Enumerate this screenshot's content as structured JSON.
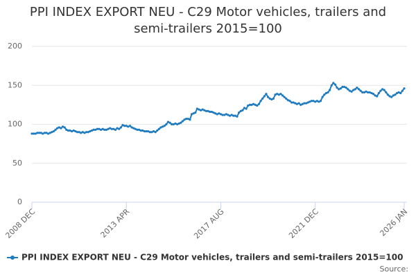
{
  "chart_data": {
    "type": "line",
    "title": "PPI INDEX EXPORT NEU - C29 Motor vehicles, trailers and semi-trailers 2015=100",
    "source": "Source:",
    "categories": [
      "2008 DEC",
      null,
      null,
      null,
      null,
      null,
      null,
      null,
      null,
      null,
      null,
      null,
      null,
      null,
      null,
      null,
      null,
      null,
      null,
      null,
      null,
      null,
      null,
      null,
      null,
      null,
      null,
      null,
      null,
      null,
      null,
      null,
      null,
      null,
      null,
      null,
      null,
      null,
      null,
      null,
      null,
      null,
      null,
      null,
      null,
      null,
      null,
      null,
      null,
      null,
      null,
      null,
      "2013 APR",
      null,
      null,
      null,
      null,
      null,
      null,
      null,
      null,
      null,
      null,
      null,
      null,
      null,
      null,
      null,
      null,
      null,
      null,
      null,
      null,
      null,
      null,
      null,
      null,
      null,
      null,
      null,
      null,
      null,
      null,
      null,
      null,
      null,
      null,
      null,
      null,
      null,
      null,
      null,
      null,
      null,
      null,
      null,
      null,
      null,
      null,
      null,
      null,
      null,
      null,
      null,
      "2017 AUG",
      null,
      null,
      null,
      null,
      null,
      null,
      null,
      null,
      null,
      null,
      null,
      null,
      null,
      null,
      null,
      null,
      null,
      null,
      null,
      null,
      null,
      null,
      null,
      null,
      null,
      null,
      null,
      null,
      null,
      null,
      null,
      null,
      null,
      null,
      null,
      null,
      null,
      null,
      null,
      null,
      null,
      null,
      null,
      null,
      null,
      null,
      null,
      null,
      null,
      null,
      null,
      "2021 DEC",
      null,
      null,
      null,
      null,
      null,
      null,
      null,
      null,
      null,
      null,
      null,
      null,
      null,
      null,
      null,
      null,
      null,
      null,
      null,
      null,
      null,
      null,
      null,
      null,
      null,
      null,
      null,
      null,
      null,
      null,
      null,
      null,
      null,
      null,
      null,
      null,
      null,
      null,
      null,
      null,
      null,
      null,
      null,
      null,
      null,
      null,
      null,
      null,
      "2026 JAN"
    ],
    "series": [
      {
        "name": "PPI INDEX EXPORT NEU - C29 Motor vehicles, trailers and semi-trailers 2015=100",
        "color": "#1f7bbf",
        "values": [
          88,
          88,
          88,
          89,
          89,
          89,
          88,
          89,
          89,
          88,
          89,
          90,
          91,
          93,
          95,
          96,
          95,
          97,
          96,
          93,
          92,
          92,
          91,
          92,
          91,
          90,
          90,
          89,
          90,
          89,
          90,
          90,
          91,
          92,
          93,
          93,
          94,
          94,
          93,
          94,
          93,
          93,
          94,
          95,
          94,
          94,
          93,
          95,
          94,
          96,
          99,
          98,
          98,
          97,
          98,
          96,
          95,
          94,
          93,
          93,
          92,
          92,
          91,
          91,
          91,
          90,
          90,
          91,
          90,
          92,
          94,
          96,
          97,
          98,
          100,
          103,
          102,
          100,
          100,
          101,
          100,
          101,
          102,
          104,
          106,
          107,
          107,
          106,
          113,
          114,
          115,
          120,
          119,
          118,
          119,
          118,
          117,
          117,
          116,
          116,
          115,
          114,
          113,
          114,
          113,
          112,
          112,
          113,
          112,
          111,
          112,
          111,
          111,
          110,
          115,
          117,
          118,
          121,
          120,
          124,
          125,
          125,
          126,
          125,
          124,
          126,
          130,
          133,
          136,
          139,
          135,
          133,
          132,
          133,
          138,
          139,
          138,
          139,
          137,
          135,
          133,
          131,
          130,
          128,
          128,
          127,
          126,
          127,
          125,
          126,
          127,
          127,
          128,
          129,
          130,
          130,
          129,
          130,
          129,
          130,
          135,
          138,
          140,
          141,
          144,
          150,
          153,
          151,
          147,
          145,
          146,
          148,
          148,
          147,
          145,
          143,
          142,
          144,
          145,
          147,
          145,
          143,
          141,
          141,
          142,
          141,
          141,
          140,
          139,
          137,
          136,
          140,
          143,
          145,
          144,
          141,
          138,
          136,
          135,
          137,
          138,
          140,
          141,
          140,
          143,
          146
        ]
      }
    ],
    "ylim": [
      0,
      200
    ],
    "yticks": [
      0,
      50,
      100,
      150,
      200
    ],
    "grid": true
  }
}
